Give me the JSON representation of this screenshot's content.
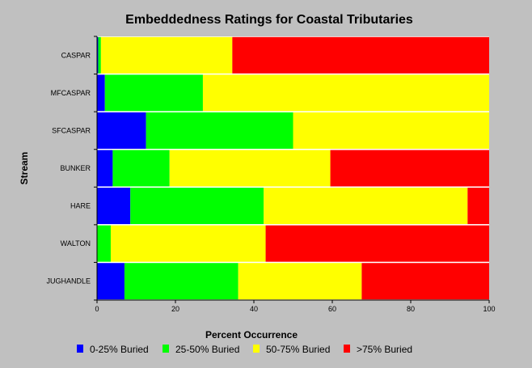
{
  "chart_data": {
    "type": "bar",
    "orientation": "horizontal",
    "stacked": true,
    "title": "Embeddedness Ratings for Coastal Tributaries",
    "xlabel": "Percent Occurrence",
    "ylabel": "Stream",
    "xlim": [
      0,
      100
    ],
    "xticks": [
      "0",
      "20",
      "40",
      "60",
      "80",
      "100"
    ],
    "xtick_values": [
      0,
      20,
      40,
      60,
      80,
      100
    ],
    "grid": false,
    "legend_position": "bottom",
    "categories": [
      "CASPAR",
      "MFCASPAR",
      "SFCASPAR",
      "BUNKER",
      "HARE",
      "WALTON",
      "JUGHANDLE"
    ],
    "series": [
      {
        "name": "0-25% Buried",
        "color": "#0000ff",
        "values": [
          0.3,
          2,
          12.5,
          4,
          8.5,
          0,
          7
        ]
      },
      {
        "name": "25-50% Buried",
        "color": "#00ff00",
        "values": [
          0.7,
          25,
          37.5,
          14.5,
          34,
          3.5,
          29
        ]
      },
      {
        "name": "50-75% Buried",
        "color": "#ffff00",
        "values": [
          33.5,
          73,
          50,
          41,
          52,
          39.5,
          31.5
        ]
      },
      {
        "name": ">75% Buried",
        "color": "#ff0000",
        "values": [
          65.5,
          0,
          0,
          40.5,
          5.5,
          57,
          32.5
        ]
      }
    ]
  }
}
